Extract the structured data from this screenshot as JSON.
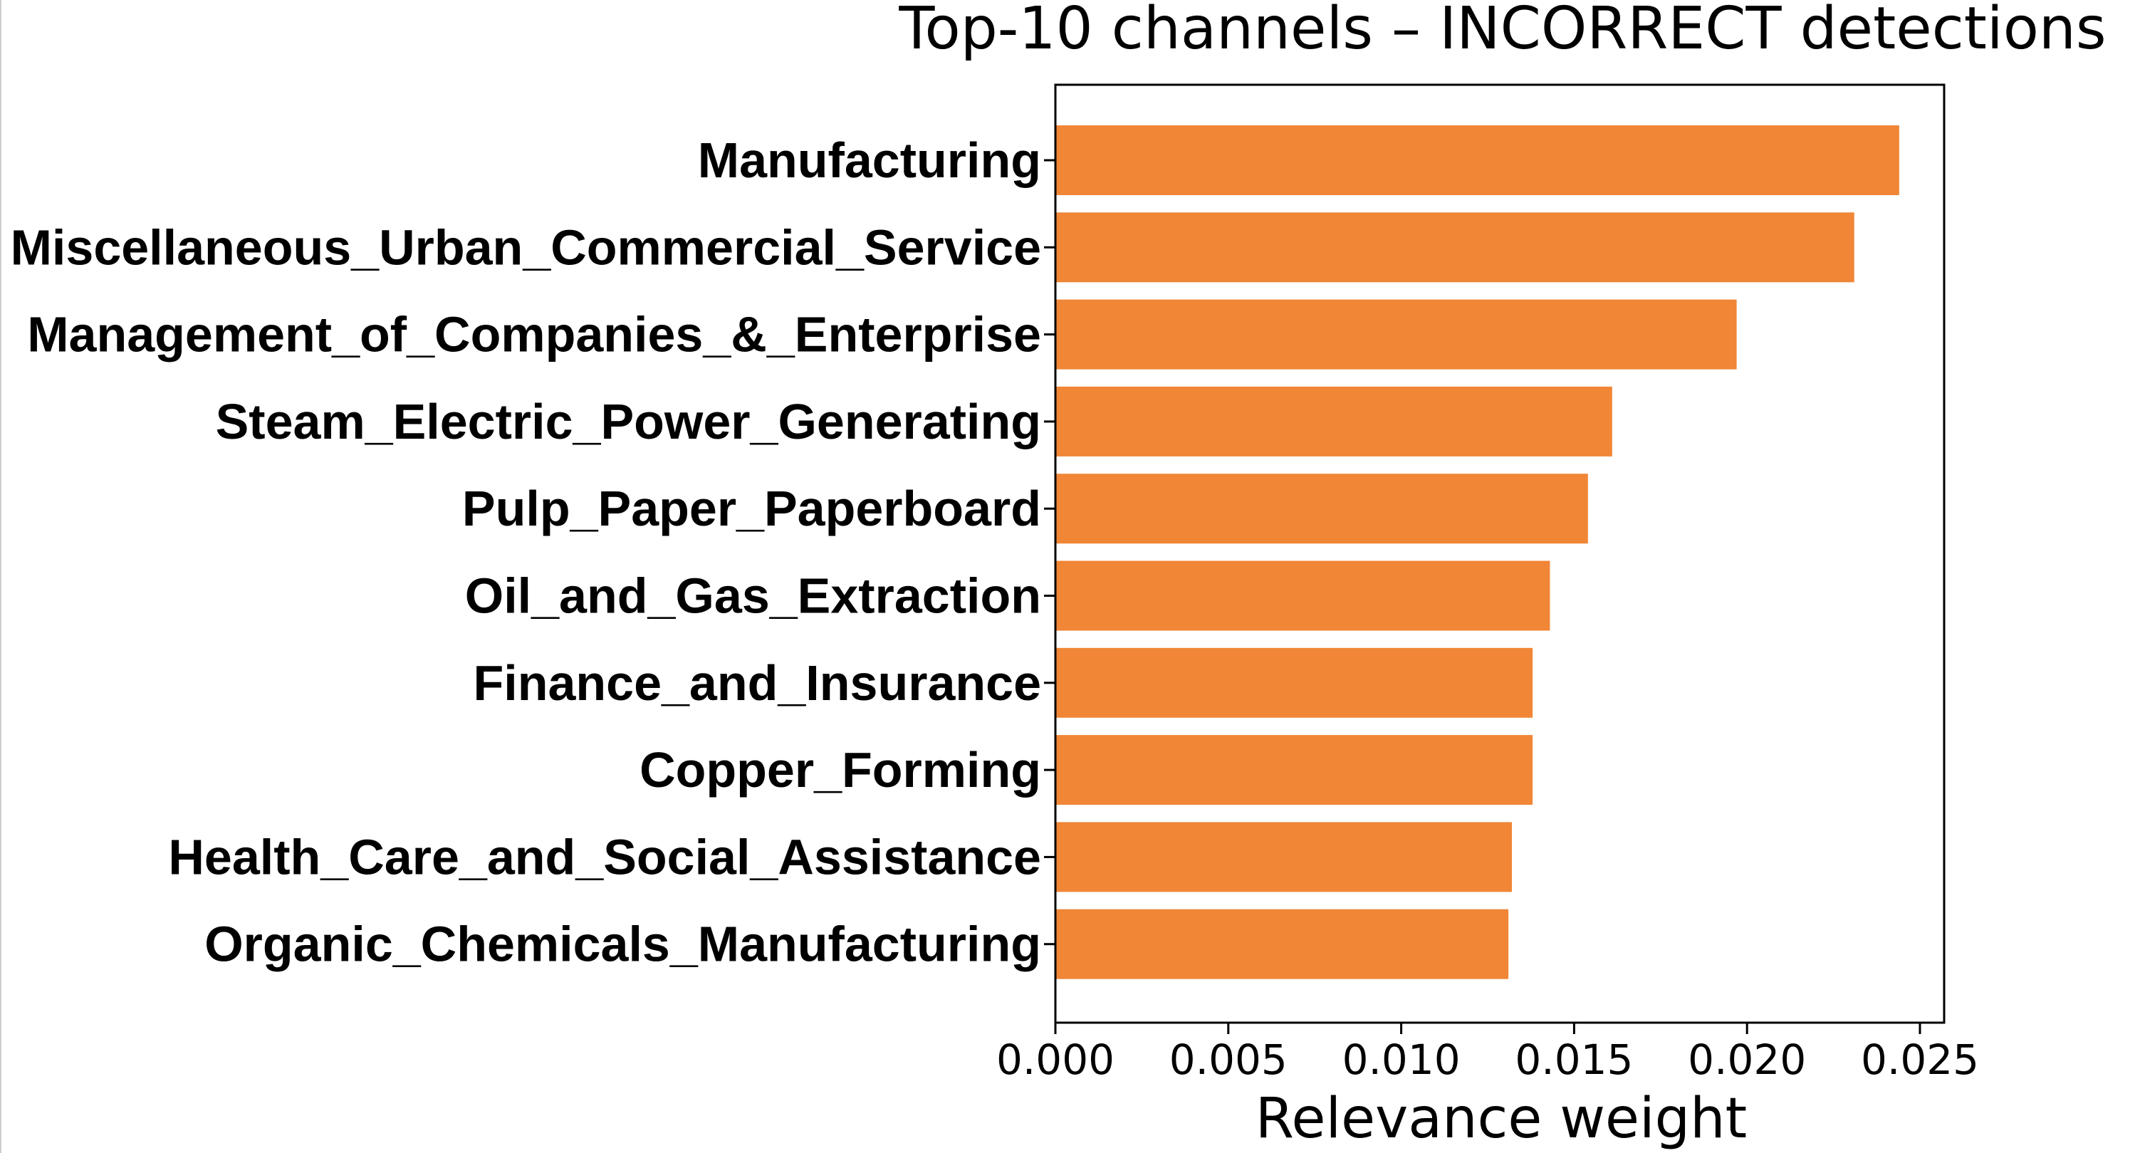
{
  "chart_data": {
    "type": "bar",
    "orientation": "horizontal",
    "title": "Top-10 channels – INCORRECT detections",
    "xlabel": "Relevance weight",
    "ylabel": "",
    "xlim": [
      0,
      0.0257
    ],
    "x_ticks": [
      "0.000",
      "0.005",
      "0.010",
      "0.015",
      "0.020",
      "0.025"
    ],
    "x_tick_values": [
      0,
      0.005,
      0.01,
      0.015,
      0.02,
      0.025
    ],
    "categories": [
      "Manufacturing",
      "Miscellaneous_Urban_Commercial_Service",
      "Management_of_Companies_&_Enterprise",
      "Steam_Electric_Power_Generating",
      "Pulp_Paper_Paperboard",
      "Oil_and_Gas_Extraction",
      "Finance_and_Insurance",
      "Copper_Forming",
      "Health_Care_and_Social_Assistance",
      "Organic_Chemicals_Manufacturing"
    ],
    "values": [
      0.0244,
      0.0231,
      0.0197,
      0.0161,
      0.0154,
      0.0143,
      0.0138,
      0.0138,
      0.0132,
      0.0131
    ],
    "bar_color": "#f08636",
    "grid": false,
    "legend": "none"
  }
}
